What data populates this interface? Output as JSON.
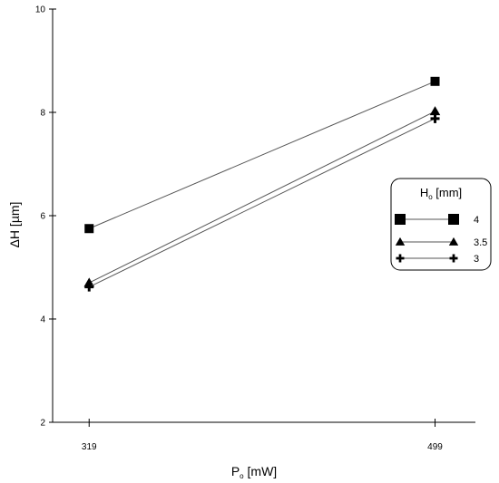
{
  "chart_data": {
    "type": "line",
    "x": [
      319,
      499
    ],
    "xticks": [
      319,
      499
    ],
    "xlim": [
      300,
      520
    ],
    "ylim": [
      2,
      10
    ],
    "yticks": [
      2,
      4,
      6,
      8,
      10
    ],
    "xlabel": {
      "main": "P",
      "sub": "o",
      "unit": " [mW]"
    },
    "ylabel": "ΔH [µm]",
    "grid": false,
    "legend": {
      "title": {
        "main": "H",
        "sub": "o",
        "unit": " [mm]"
      },
      "placement": "right"
    },
    "series": [
      {
        "name": "4",
        "marker": "square",
        "values": [
          5.75,
          8.6
        ]
      },
      {
        "name": "3.5",
        "marker": "triangle",
        "values": [
          4.7,
          8.02
        ]
      },
      {
        "name": "3",
        "marker": "cross",
        "values": [
          4.62,
          7.88
        ]
      }
    ],
    "colors": {
      "line": "#555555",
      "marker": "#000000",
      "axis": "#000000"
    }
  }
}
